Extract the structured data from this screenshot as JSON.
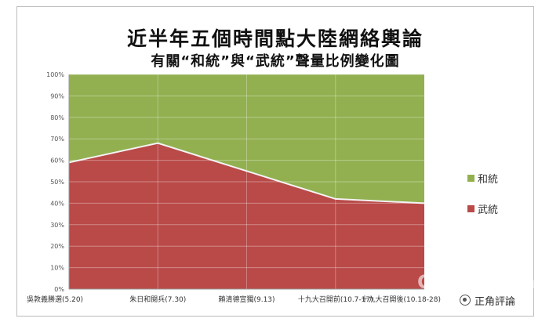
{
  "chart_data": {
    "type": "area",
    "title": "近半年五個時間點大陸網絡輿論",
    "subtitle": "有關“和統”與“武統”聲量比例變化圖",
    "categories": [
      "吳敦義勝選(5.20)",
      "朱日和閱兵(7.30)",
      "賴清德宣獨(9.13)",
      "十九大召開前(10.7-17)",
      "十九大召開後(10.18-28)"
    ],
    "ylim": [
      0,
      100
    ],
    "yticks": [
      "0%",
      "10%",
      "20%",
      "30%",
      "40%",
      "50%",
      "60%",
      "70%",
      "80%",
      "90%",
      "100%"
    ],
    "grid": true,
    "legend_position": "right",
    "series": [
      {
        "name": "和統",
        "values": [
          41,
          32,
          45,
          58,
          60
        ],
        "color": "#92b050"
      },
      {
        "name": "武統",
        "values": [
          59,
          68,
          55,
          42,
          40
        ],
        "color": "#b94a48"
      }
    ]
  },
  "watermark": {
    "name_cn": "中評社",
    "name_en": "CRNTT.com",
    "account": "正角評論",
    "icon": "wechat-icon"
  }
}
